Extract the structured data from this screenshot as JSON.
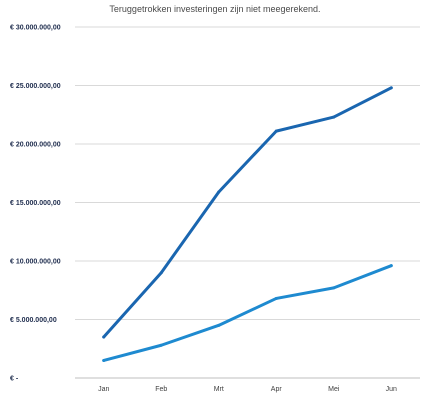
{
  "chart_data": {
    "type": "line",
    "subtitle": "Teruggetrokken investeringen zijn niet meegerekend.",
    "categories": [
      "Jan",
      "Feb",
      "Mrt",
      "Apr",
      "Mei",
      "Jun"
    ],
    "ylim": [
      0,
      30000000
    ],
    "yticks": [
      0,
      5000000,
      10000000,
      15000000,
      20000000,
      25000000,
      30000000
    ],
    "ytick_labels": [
      "€ -",
      "€ 5.000.000,00",
      "€ 10.000.000,00",
      "€ 15.000.000,00",
      "€ 20.000.000,00",
      "€ 25.000.000,00",
      "€ 30.000.000,00"
    ],
    "grid": true,
    "legend": "none",
    "series": [
      {
        "values": [
          3500000,
          9000000,
          15900000,
          21100000,
          22300000,
          24800000
        ],
        "color": "#1a66b0"
      },
      {
        "values": [
          1500000,
          2800000,
          4500000,
          6800000,
          7700000,
          9600000
        ],
        "color": "#1e8ad0"
      }
    ]
  }
}
